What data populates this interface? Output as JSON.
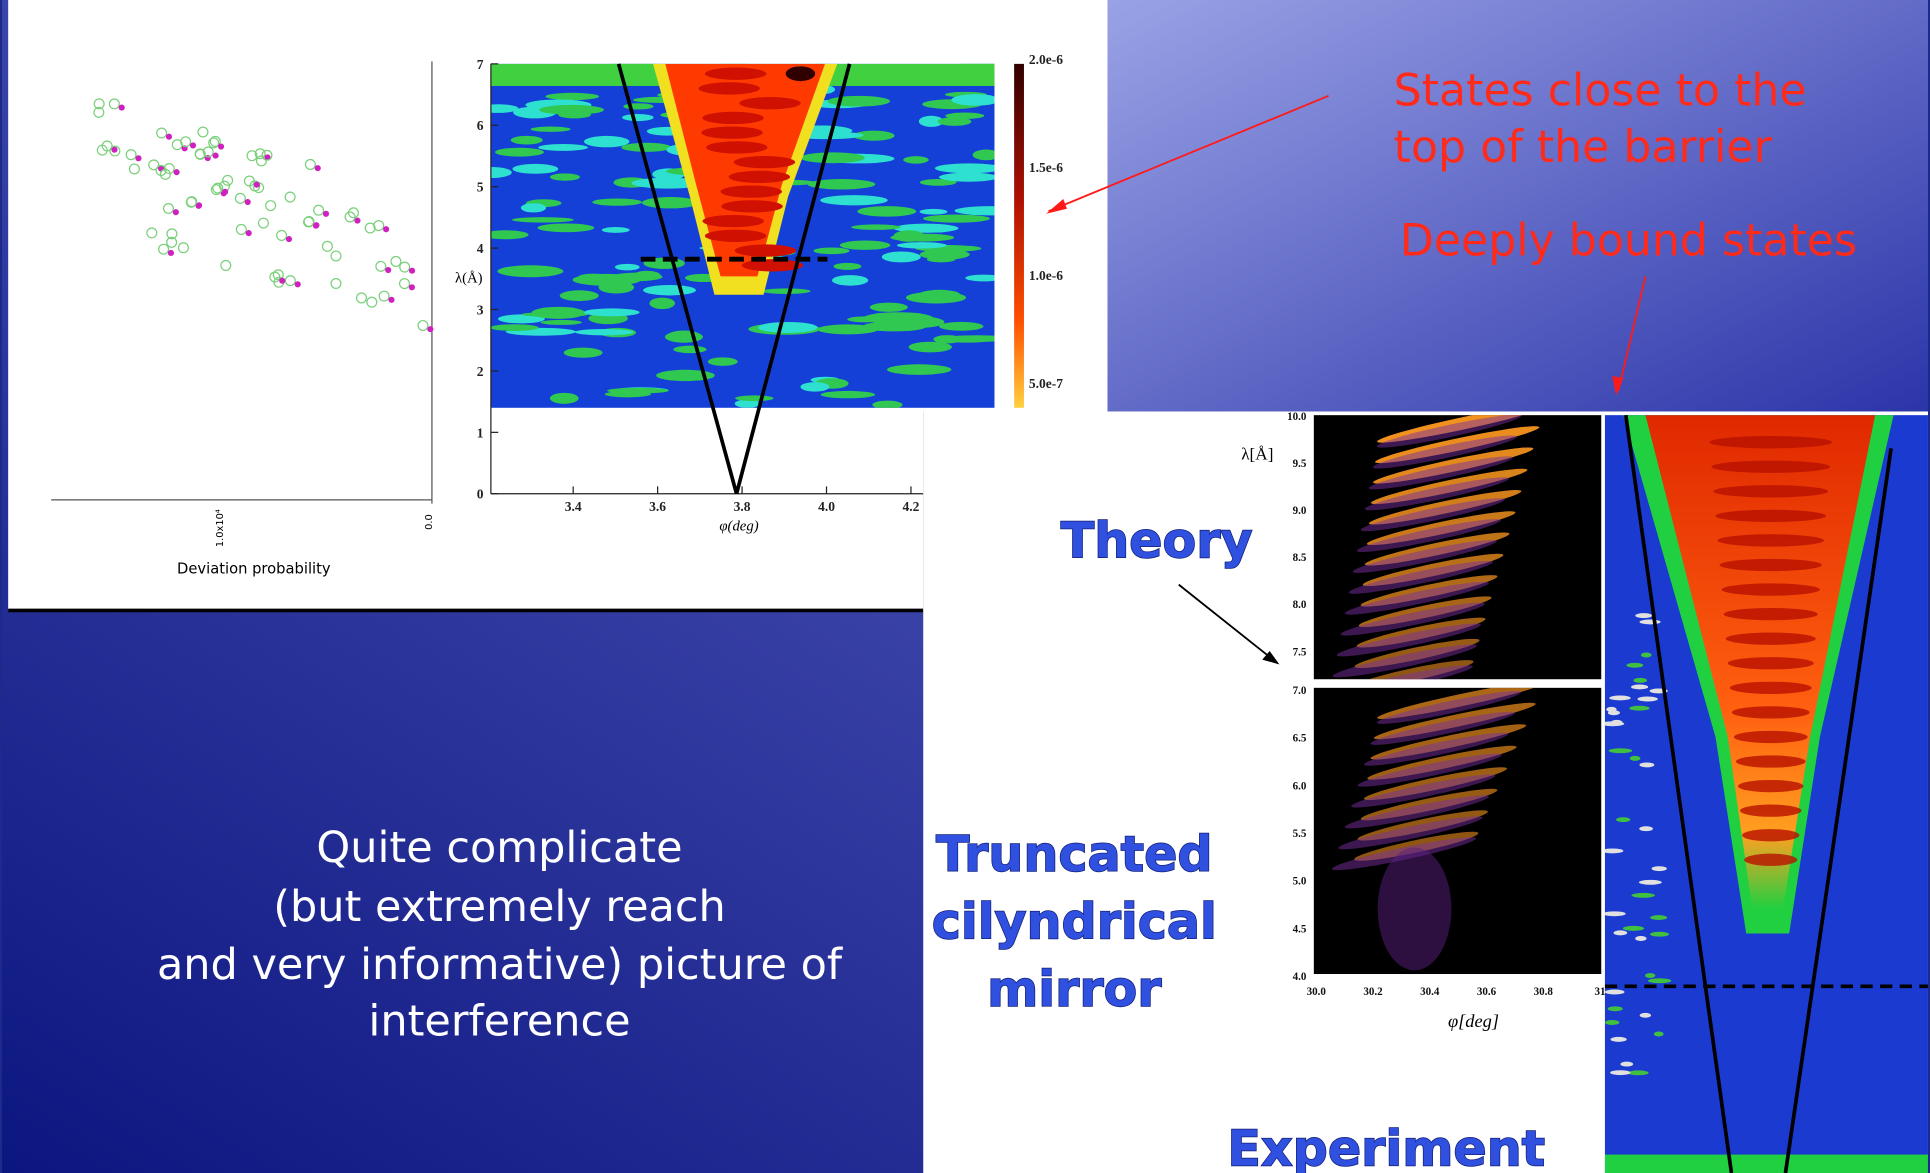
{
  "top_figure": {
    "y_label": "λ(Å)",
    "y_ticks": [
      "0",
      "1",
      "2",
      "3",
      "4",
      "5",
      "6",
      "7"
    ],
    "x_ticks": [
      "3.4",
      "3.6",
      "3.8",
      "4.0",
      "4.2"
    ],
    "x_label": "φ(deg)",
    "colorbar_ticks": [
      "2.0e-6",
      "1.5e-6",
      "1.0e-6",
      "5.0e-7"
    ],
    "side_label": "Deviation probability",
    "side_ticks": [
      "1.0x10⁴",
      "0.0"
    ]
  },
  "annotations": {
    "barrier_top": [
      "States close to the",
      "top of the barrier"
    ],
    "deep": "Deeply bound states"
  },
  "body_text": [
    "Quite complicate",
    "(but extremely reach",
    "and very informative) picture of",
    "interference"
  ],
  "bottom_figure": {
    "theory": "Theory",
    "mirror": [
      "Truncated",
      "cilyndrical",
      "mirror"
    ],
    "experiment": "Experiment",
    "y_label": "λ[Å]",
    "y_ticks_top": [
      "10.0",
      "9.5",
      "9.0",
      "8.5",
      "8.0",
      "7.5"
    ],
    "y_ticks_bottom": [
      "7.0",
      "6.5",
      "6.0",
      "5.5",
      "5.0",
      "4.5",
      "4.0"
    ],
    "x_ticks": [
      "30.0",
      "30.2",
      "30.4",
      "30.6",
      "30.8",
      "31"
    ],
    "x_label": "φ[deg]"
  }
}
